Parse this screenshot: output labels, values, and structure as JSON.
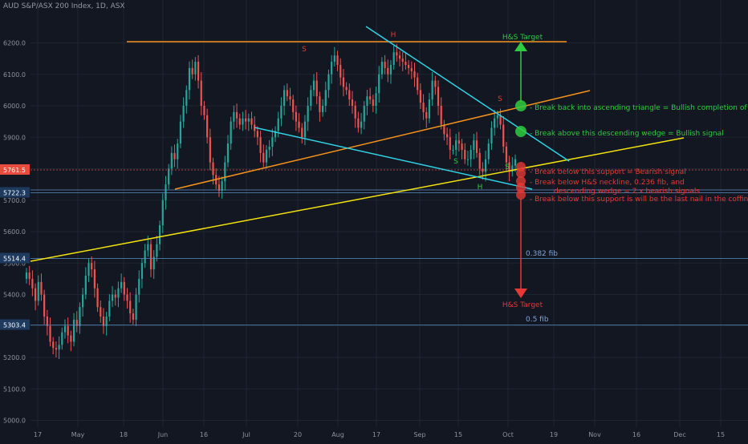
{
  "header": {
    "currency": "AUD",
    "symbol_text": "S&P/ASX 200 Index, 1D, ASX"
  },
  "colors": {
    "background": "#131722",
    "grid": "#1f2431",
    "axis_text": "#8e929b",
    "up": "#26a69a",
    "down": "#ef5350",
    "orange_line": "#f7931a",
    "yellow_line": "#f4e20c",
    "cyan_line": "#2fd3e6",
    "blue_level": "#5b8fc7",
    "red_level": "#e74c3c",
    "green_note": "#2ecc40",
    "red_note": "#e53935"
  },
  "chart_data": {
    "type": "candlestick",
    "title": "S&P/ASX 200 Index, 1D, ASX",
    "ylim": [
      5000,
      6250
    ],
    "y_ticks": [
      5000,
      5100,
      5200,
      5300,
      5400,
      5500,
      5600,
      5700,
      5800,
      5900,
      6000,
      6100,
      6200
    ],
    "x_ticks": [
      "17",
      "May",
      "18",
      "Jun",
      "16",
      "Jul",
      "20",
      "Aug",
      "17",
      "Sep",
      "15",
      "Oct",
      "19",
      "Nov",
      "16",
      "Dec",
      "15"
    ],
    "price_labels": [
      {
        "value": 5761.5,
        "text": "5761.5",
        "kind": "red"
      },
      {
        "value": 5722.3,
        "text": "5722.3",
        "kind": "blue"
      },
      {
        "value": 5514.4,
        "text": "5514.4",
        "kind": "blue"
      },
      {
        "value": 5303.4,
        "text": "5303.4",
        "kind": "blue"
      }
    ],
    "closes": [
      5470,
      5450,
      5420,
      5380,
      5440,
      5400,
      5330,
      5300,
      5250,
      5230,
      5225,
      5240,
      5280,
      5300,
      5270,
      5250,
      5320,
      5300,
      5360,
      5400,
      5460,
      5500,
      5480,
      5420,
      5360,
      5330,
      5300,
      5330,
      5380,
      5400,
      5390,
      5420,
      5440,
      5400,
      5380,
      5340,
      5320,
      5400,
      5450,
      5500,
      5540,
      5560,
      5480,
      5520,
      5560,
      5620,
      5700,
      5750,
      5800,
      5850,
      5830,
      5880,
      5950,
      6000,
      6050,
      6120,
      6100,
      6140,
      6080,
      6000,
      5970,
      5900,
      5820,
      5780,
      5750,
      5730,
      5760,
      5820,
      5880,
      5950,
      5980,
      5960,
      5940,
      5960,
      5950,
      5960,
      5940,
      5920,
      5900,
      5850,
      5820,
      5860,
      5870,
      5900,
      5920,
      5960,
      6000,
      6050,
      6030,
      6020,
      5980,
      5950,
      5930,
      5900,
      5950,
      6000,
      6050,
      6080,
      6030,
      5980,
      6000,
      6050,
      6100,
      6140,
      6160,
      6130,
      6090,
      6060,
      6050,
      6020,
      6000,
      5960,
      5930,
      5950,
      6000,
      6030,
      6020,
      6000,
      6040,
      6100,
      6140,
      6120,
      6100,
      6130,
      6170,
      6160,
      6150,
      6140,
      6130,
      6120,
      6110,
      6090,
      6050,
      6010,
      5980,
      5960,
      6020,
      6080,
      6060,
      6000,
      5940,
      5910,
      5900,
      5860,
      5860,
      5890,
      5880,
      5860,
      5830,
      5830,
      5860,
      5890,
      5850,
      5800,
      5790,
      5830,
      5880,
      5930,
      5960,
      5970,
      5940,
      5870,
      5820,
      5790,
      5810,
      5830
    ],
    "x_range": [
      "Apr 13",
      "Oct 12"
    ]
  },
  "annotations": {
    "hs_target_top": "H&S Target",
    "hs_target_bottom": "H&S Target",
    "label_h1": "H",
    "label_s1": "S",
    "label_s2": "S",
    "label_s3": "S",
    "label_h2": "H",
    "label_s4": "S",
    "fib_382": "0.382 fib",
    "fib_5": "0.5 fib",
    "note1": "- Break back into ascending triangle = Bullish completion of H&S",
    "note2": "- Break above this descending wedge = Bullish signal",
    "note3": "- Break below this support = Bearish signal",
    "note4a": "- Break below H&S neckline, 0.236 fib, and",
    "note4b": "descending wedge = 2 x bearish signals",
    "note5": "- Break below this support is will be the last nail in the coffin"
  }
}
